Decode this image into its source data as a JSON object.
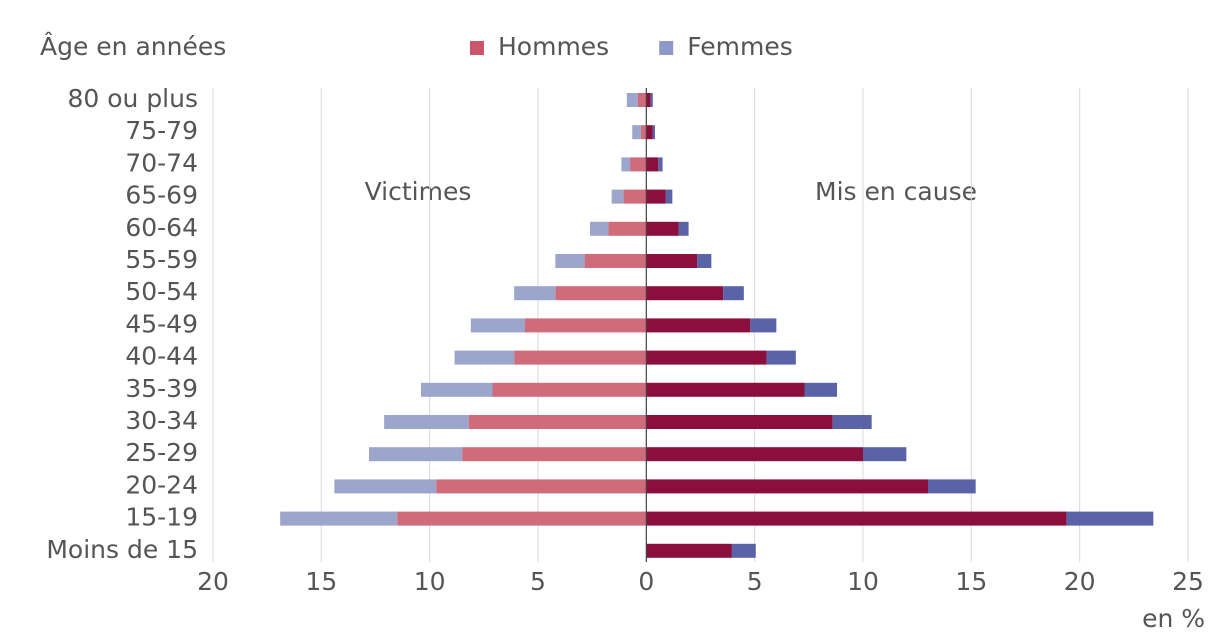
{
  "chart_data": {
    "type": "pyramid",
    "y_axis_title": "Âge en années",
    "x_axis_unit": "en %",
    "categories": [
      "80 ou plus",
      "75-79",
      "70-74",
      "65-69",
      "60-64",
      "55-59",
      "50-54",
      "45-49",
      "40-44",
      "35-39",
      "30-34",
      "25-29",
      "20-24",
      "15-19",
      "Moins de 15"
    ],
    "legend": [
      {
        "name": "Hommes",
        "color": "#c9566a"
      },
      {
        "name": "Femmes",
        "color": "#8d99c8"
      }
    ],
    "panels": [
      {
        "label": "Victimes",
        "series": [
          {
            "color": "#cf6b7b",
            "values": [
              -0.4,
              -0.25,
              -0.75,
              -1.05,
              -1.75,
              -2.85,
              -4.2,
              -5.6,
              -6.1,
              -7.1,
              -8.2,
              -8.5,
              -9.7,
              -11.5,
              null
            ]
          },
          {
            "color": "#9ca5cb",
            "values": [
              -0.5,
              -0.4,
              -0.4,
              -0.55,
              -0.85,
              -1.35,
              -1.9,
              -2.5,
              -2.75,
              -3.3,
              -3.9,
              -4.3,
              -4.7,
              -5.4,
              null
            ]
          }
        ]
      },
      {
        "label": "Mis en cause",
        "series": [
          {
            "color": "#8a0f3c",
            "values": [
              0.2,
              0.3,
              0.55,
              0.9,
              1.5,
              2.35,
              3.55,
              4.8,
              5.55,
              7.3,
              8.6,
              10.0,
              13.0,
              19.4,
              3.95
            ]
          },
          {
            "color": "#5a63a8",
            "values": [
              0.1,
              0.1,
              0.2,
              0.3,
              0.45,
              0.65,
              0.95,
              1.2,
              1.35,
              1.5,
              1.8,
              2.0,
              2.2,
              4.0,
              1.1
            ]
          }
        ]
      }
    ],
    "xlim": [
      -20,
      25
    ],
    "xticks": [
      {
        "value": -20,
        "label": "20"
      },
      {
        "value": -15,
        "label": "15"
      },
      {
        "value": -10,
        "label": "10"
      },
      {
        "value": -5,
        "label": "5"
      },
      0,
      5,
      10,
      15,
      20,
      25
    ],
    "grid": true
  }
}
